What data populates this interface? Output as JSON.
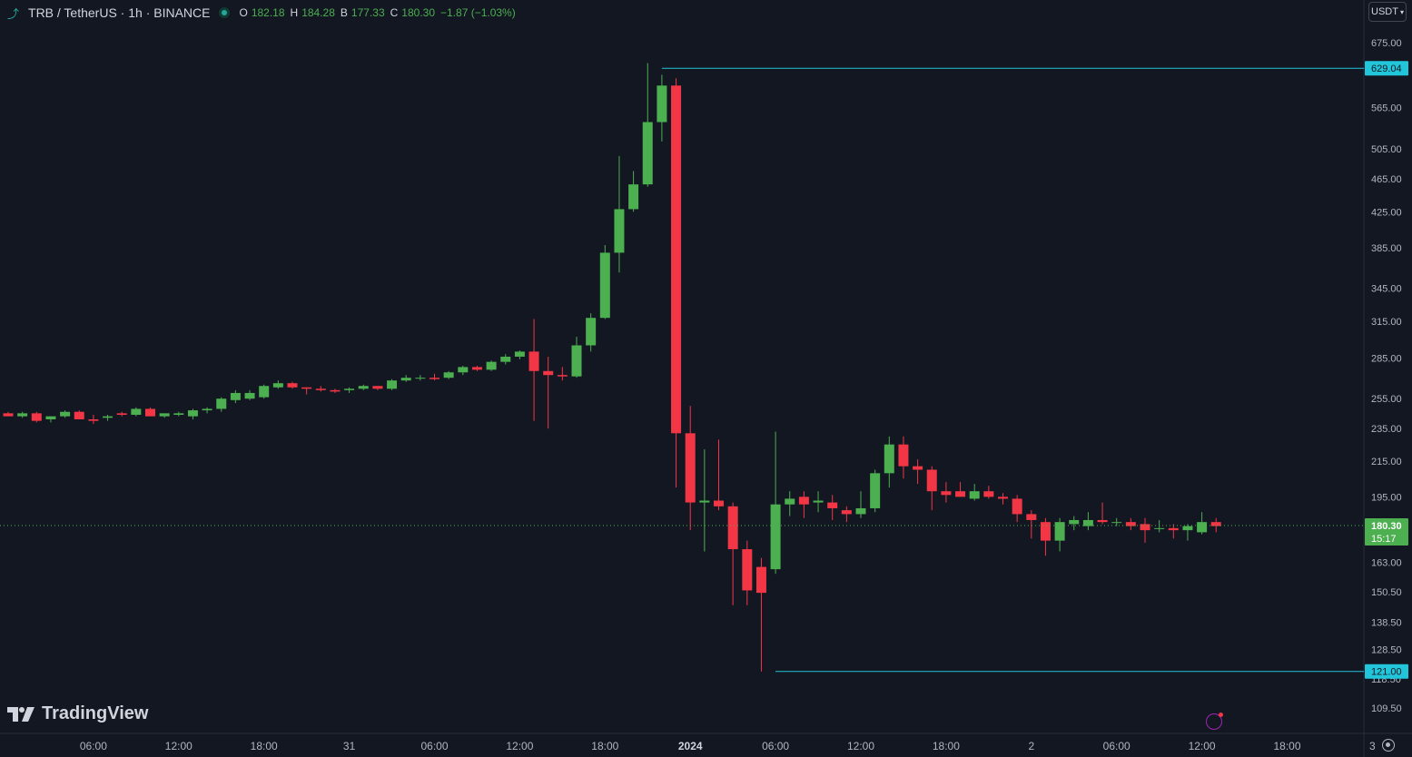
{
  "header": {
    "symbol": "TRB / TetherUS · 1h · BINANCE",
    "ohlc": {
      "o_label": "O",
      "o": "182.18",
      "h_label": "H",
      "h": "184.28",
      "b_label": "B",
      "b": "177.33",
      "c_label": "C",
      "c": "180.30",
      "change": "−1.87 (−1.03%)"
    }
  },
  "currency": "USDT",
  "logo_text": "TradingView",
  "colors": {
    "background": "#131722",
    "up": "#4caf50",
    "down": "#f23645",
    "level_line": "#22c6da",
    "axis_text": "#b2b5be"
  },
  "chart_data": {
    "type": "candlestick",
    "scale": "log",
    "y_range": [
      105,
      720
    ],
    "y_ticks": [
      "675.00",
      "565.00",
      "505.00",
      "465.00",
      "425.00",
      "385.00",
      "345.00",
      "315.00",
      "285.00",
      "255.00",
      "235.00",
      "215.00",
      "195.00",
      "163.00",
      "150.50",
      "138.50",
      "128.50",
      "118.50",
      "109.50"
    ],
    "y_tick_values": [
      675,
      565,
      505,
      465,
      425,
      385,
      345,
      315,
      285,
      255,
      235,
      215,
      195,
      163,
      150.5,
      138.5,
      128.5,
      118.5,
      109.5
    ],
    "x_ticks": [
      "06:00",
      "12:00",
      "18:00",
      "31",
      "06:00",
      "12:00",
      "18:00",
      "2024",
      "06:00",
      "12:00",
      "18:00",
      "2",
      "06:00",
      "12:00",
      "18:00",
      "3"
    ],
    "x_tick_index": [
      6,
      12,
      18,
      24,
      30,
      36,
      42,
      48,
      54,
      60,
      66,
      72,
      78,
      84,
      90,
      96
    ],
    "level_lines": [
      {
        "label": "629.04",
        "value": 629.04,
        "start_index": 46
      },
      {
        "label": "121.00",
        "value": 121.0,
        "start_index": 54
      }
    ],
    "last_price": {
      "label": "180.30",
      "countdown": "15:17",
      "value": 180.3
    },
    "candles": [
      [
        245,
        246,
        243,
        243
      ],
      [
        243,
        246,
        242,
        245
      ],
      [
        245,
        246,
        239,
        240
      ],
      [
        241,
        243,
        239,
        243
      ],
      [
        243,
        247,
        242,
        246
      ],
      [
        246,
        247,
        241,
        241
      ],
      [
        241,
        244,
        238,
        240
      ],
      [
        242,
        244,
        240,
        243
      ],
      [
        245,
        246,
        243,
        244
      ],
      [
        244,
        249,
        243,
        248
      ],
      [
        248,
        249,
        243,
        243
      ],
      [
        243,
        245,
        242,
        245
      ],
      [
        244,
        246,
        243,
        245
      ],
      [
        243,
        248,
        241,
        247
      ],
      [
        247,
        249,
        245,
        248
      ],
      [
        248,
        256,
        246,
        255
      ],
      [
        254,
        261,
        252,
        259
      ],
      [
        255,
        261,
        254,
        259
      ],
      [
        256,
        265,
        255,
        264
      ],
      [
        263,
        268,
        262,
        266
      ],
      [
        266,
        267,
        262,
        263
      ],
      [
        263,
        263,
        258,
        262
      ],
      [
        262,
        264,
        260,
        261
      ],
      [
        261,
        262,
        259,
        260
      ],
      [
        261,
        263,
        259,
        262
      ],
      [
        262,
        265,
        261,
        264
      ],
      [
        264,
        264,
        261,
        262
      ],
      [
        262,
        269,
        261,
        268
      ],
      [
        268,
        272,
        267,
        270
      ],
      [
        270,
        272,
        268,
        270
      ],
      [
        270,
        273,
        268,
        269
      ],
      [
        270,
        275,
        269,
        274
      ],
      [
        274,
        279,
        272,
        278
      ],
      [
        278,
        279,
        275,
        276
      ],
      [
        276,
        283,
        275,
        282
      ],
      [
        282,
        288,
        280,
        286
      ],
      [
        286,
        291,
        284,
        290
      ],
      [
        290,
        317,
        240,
        275
      ],
      [
        275,
        286,
        235,
        272
      ],
      [
        272,
        278,
        268,
        271
      ],
      [
        271,
        302,
        270,
        295
      ],
      [
        295,
        322,
        290,
        318
      ],
      [
        318,
        388,
        317,
        380
      ],
      [
        380,
        495,
        360,
        428
      ],
      [
        428,
        475,
        425,
        458
      ],
      [
        458,
        638,
        455,
        543
      ],
      [
        543,
        618,
        515,
        600
      ],
      [
        600,
        612,
        200,
        232
      ],
      [
        232,
        250,
        178,
        192
      ],
      [
        192,
        222,
        168,
        193
      ],
      [
        193,
        228,
        188,
        190
      ],
      [
        190,
        192,
        145,
        169
      ],
      [
        169,
        173,
        145,
        151
      ],
      [
        161,
        165,
        121,
        150
      ],
      [
        160,
        233,
        158,
        191
      ],
      [
        191,
        198,
        185,
        194
      ],
      [
        195,
        198,
        184,
        191
      ],
      [
        192,
        198,
        187,
        193
      ],
      [
        192,
        196,
        183,
        189
      ],
      [
        188,
        190,
        182,
        186
      ],
      [
        186,
        198,
        184,
        189
      ],
      [
        189,
        210,
        187,
        208
      ],
      [
        208,
        230,
        200,
        225
      ],
      [
        225,
        230,
        205,
        212
      ],
      [
        212,
        216,
        202,
        210
      ],
      [
        210,
        212,
        188,
        198
      ],
      [
        198,
        203,
        192,
        196
      ],
      [
        198,
        203,
        195,
        195
      ],
      [
        194,
        202,
        193,
        198
      ],
      [
        198,
        201,
        194,
        195
      ],
      [
        195,
        197,
        191,
        194
      ],
      [
        194,
        196,
        182,
        186
      ],
      [
        186,
        188,
        174,
        183
      ],
      [
        182,
        184,
        166,
        173
      ],
      [
        173,
        184,
        168,
        182
      ],
      [
        181,
        185,
        178,
        183
      ],
      [
        180,
        187,
        178,
        183
      ],
      [
        183,
        192,
        181,
        182
      ],
      [
        182,
        184,
        180,
        182
      ],
      [
        182,
        184,
        178,
        180
      ],
      [
        181,
        184,
        172,
        178
      ],
      [
        179,
        183,
        177,
        179
      ],
      [
        179,
        181,
        174,
        178
      ],
      [
        178,
        181,
        173,
        180
      ],
      [
        177,
        187,
        176,
        182
      ],
      [
        182,
        184,
        177,
        180
      ]
    ]
  }
}
